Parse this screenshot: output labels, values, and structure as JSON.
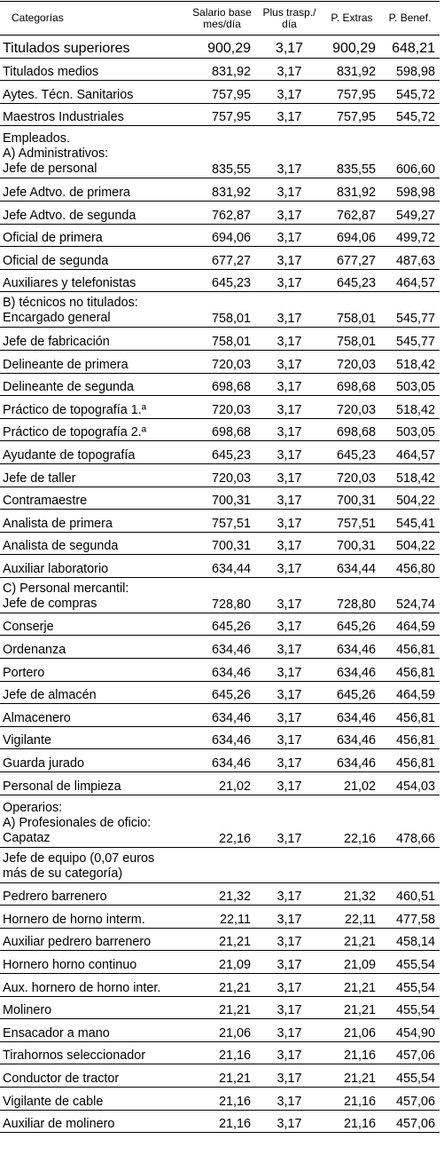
{
  "header": {
    "categorias": "Categorías",
    "salario_base": [
      "Salario base",
      "mes/día"
    ],
    "plus_trasp": [
      "Plus trasp./",
      "día"
    ],
    "p_extras": "P. Extras",
    "p_benef": "P. Benef."
  },
  "rows": [
    {
      "lines": [
        "Titulados superiores"
      ],
      "sb": "900,29",
      "pt": "3,17",
      "pe": "900,29",
      "pb": "648,21"
    },
    {
      "lines": [
        "Titulados medios"
      ],
      "sb": "831,92",
      "pt": "3,17",
      "pe": "831,92",
      "pb": "598,98"
    },
    {
      "lines": [
        "Aytes. Técn. Sanitarios"
      ],
      "sb": "757,95",
      "pt": "3,17",
      "pe": "757,95",
      "pb": "545,72"
    },
    {
      "lines": [
        "Maestros Industriales"
      ],
      "sb": "757,95",
      "pt": "3,17",
      "pe": "757,95",
      "pb": "545,72"
    },
    {
      "lines": [
        "Empleados.",
        "A) Administrativos:",
        "Jefe de personal"
      ],
      "sb": "835,55",
      "pt": "3,17",
      "pe": "835,55",
      "pb": "606,60"
    },
    {
      "lines": [
        "Jefe Adtvo. de primera"
      ],
      "sb": "831,92",
      "pt": "3,17",
      "pe": "831,92",
      "pb": "598,98"
    },
    {
      "lines": [
        "Jefe Adtvo. de segunda"
      ],
      "sb": "762,87",
      "pt": "3,17",
      "pe": "762,87",
      "pb": "549,27"
    },
    {
      "lines": [
        "Oficial de primera"
      ],
      "sb": "694,06",
      "pt": "3,17",
      "pe": "694,06",
      "pb": "499,72"
    },
    {
      "lines": [
        "Oficial de segunda"
      ],
      "sb": "677,27",
      "pt": "3,17",
      "pe": "677,27",
      "pb": "487,63"
    },
    {
      "lines": [
        "Auxiliares y telefonistas"
      ],
      "sb": "645,23",
      "pt": "3,17",
      "pe": "645,23",
      "pb": "464,57"
    },
    {
      "lines": [
        "B) técnicos no titulados:",
        "Encargado general"
      ],
      "sb": "758,01",
      "pt": "3,17",
      "pe": "758,01",
      "pb": "545,77"
    },
    {
      "lines": [
        "Jefe de fabricación"
      ],
      "sb": "758,01",
      "pt": "3,17",
      "pe": "758,01",
      "pb": "545,77"
    },
    {
      "lines": [
        "Delineante de primera"
      ],
      "sb": "720,03",
      "pt": "3,17",
      "pe": "720,03",
      "pb": "518,42"
    },
    {
      "lines": [
        "Delineante de segunda"
      ],
      "sb": "698,68",
      "pt": "3,17",
      "pe": "698,68",
      "pb": "503,05"
    },
    {
      "lines": [
        "Práctico de topografía 1.ª"
      ],
      "sb": "720,03",
      "pt": "3,17",
      "pe": "720,03",
      "pb": "518,42"
    },
    {
      "lines": [
        "Práctico de topografía 2.ª"
      ],
      "sb": "698,68",
      "pt": "3,17",
      "pe": "698,68",
      "pb": "503,05"
    },
    {
      "lines": [
        "Ayudante de topografía"
      ],
      "sb": "645,23",
      "pt": "3,17",
      "pe": "645,23",
      "pb": "464,57"
    },
    {
      "lines": [
        "Jefe de taller"
      ],
      "sb": "720,03",
      "pt": "3,17",
      "pe": "720,03",
      "pb": "518,42"
    },
    {
      "lines": [
        "Contramaestre"
      ],
      "sb": "700,31",
      "pt": "3,17",
      "pe": "700,31",
      "pb": "504,22"
    },
    {
      "lines": [
        "Analista de primera"
      ],
      "sb": "757,51",
      "pt": "3,17",
      "pe": "757,51",
      "pb": "545,41"
    },
    {
      "lines": [
        "Analista de segunda"
      ],
      "sb": "700,31",
      "pt": "3,17",
      "pe": "700,31",
      "pb": "504,22"
    },
    {
      "lines": [
        "Auxiliar laboratorio"
      ],
      "sb": "634,44",
      "pt": "3,17",
      "pe": "634,44",
      "pb": "456,80"
    },
    {
      "lines": [
        "C) Personal mercantil:",
        "Jefe de compras"
      ],
      "sb": "728,80",
      "pt": "3,17",
      "pe": "728,80",
      "pb": "524,74"
    },
    {
      "lines": [
        "Conserje"
      ],
      "sb": "645,26",
      "pt": "3,17",
      "pe": "645,26",
      "pb": "464,59"
    },
    {
      "lines": [
        "Ordenanza"
      ],
      "sb": "634,46",
      "pt": "3,17",
      "pe": "634,46",
      "pb": "456,81"
    },
    {
      "lines": [
        "Portero"
      ],
      "sb": "634,46",
      "pt": "3,17",
      "pe": "634,46",
      "pb": "456,81"
    },
    {
      "lines": [
        "Jefe de almacén"
      ],
      "sb": "645,26",
      "pt": "3,17",
      "pe": "645,26",
      "pb": "464,59"
    },
    {
      "lines": [
        "Almacenero"
      ],
      "sb": "634,46",
      "pt": "3,17",
      "pe": "634,46",
      "pb": "456,81"
    },
    {
      "lines": [
        "Vigilante"
      ],
      "sb": "634,46",
      "pt": "3,17",
      "pe": "634,46",
      "pb": "456,81"
    },
    {
      "lines": [
        "Guarda jurado"
      ],
      "sb": "634,46",
      "pt": "3,17",
      "pe": "634,46",
      "pb": "456,81"
    },
    {
      "lines": [
        "Personal de limpieza"
      ],
      "sb": "21,02",
      "pt": "3,17",
      "pe": "21,02",
      "pb": "454,03"
    },
    {
      "lines": [
        "Operarios:",
        "A) Profesionales de oficio:",
        "Capataz"
      ],
      "sb": "22,16",
      "pt": "3,17",
      "pe": "22,16",
      "pb": "478,66"
    },
    {
      "lines": [
        "Jefe de equipo (0,07 euros",
        "más de su categoría)"
      ],
      "sb": "",
      "pt": "",
      "pe": "",
      "pb": ""
    },
    {
      "lines": [
        "Pedrero barrenero"
      ],
      "sb": "21,32",
      "pt": "3,17",
      "pe": "21,32",
      "pb": "460,51"
    },
    {
      "lines": [
        "Hornero de horno interm."
      ],
      "sb": "22,11",
      "pt": "3,17",
      "pe": "22,11",
      "pb": "477,58"
    },
    {
      "lines": [
        "Auxiliar pedrero barrenero"
      ],
      "sb": "21,21",
      "pt": "3,17",
      "pe": "21,21",
      "pb": "458,14"
    },
    {
      "lines": [
        "Hornero horno continuo"
      ],
      "sb": "21,09",
      "pt": "3,17",
      "pe": "21,09",
      "pb": "455,54"
    },
    {
      "lines": [
        "Aux. hornero de horno inter."
      ],
      "sb": "21,21",
      "pt": "3,17",
      "pe": "21,21",
      "pb": "455,54"
    },
    {
      "lines": [
        "Molinero"
      ],
      "sb": "21,21",
      "pt": "3,17",
      "pe": "21,21",
      "pb": "455,54"
    },
    {
      "lines": [
        "Ensacador a mano"
      ],
      "sb": "21,06",
      "pt": "3,17",
      "pe": "21,06",
      "pb": "454,90"
    },
    {
      "lines": [
        "Tirahornos seleccionador"
      ],
      "sb": "21,16",
      "pt": "3,17",
      "pe": "21,16",
      "pb": "457,06"
    },
    {
      "lines": [
        "Conductor de tractor"
      ],
      "sb": "21,21",
      "pt": "3,17",
      "pe": "21,21",
      "pb": "455,54"
    },
    {
      "lines": [
        "Vigilante de cable"
      ],
      "sb": "21,16",
      "pt": "3,17",
      "pe": "21,16",
      "pb": "457,06"
    },
    {
      "lines": [
        "Auxiliar de molinero"
      ],
      "sb": "21,16",
      "pt": "3,17",
      "pe": "21,16",
      "pb": "457,06"
    }
  ]
}
